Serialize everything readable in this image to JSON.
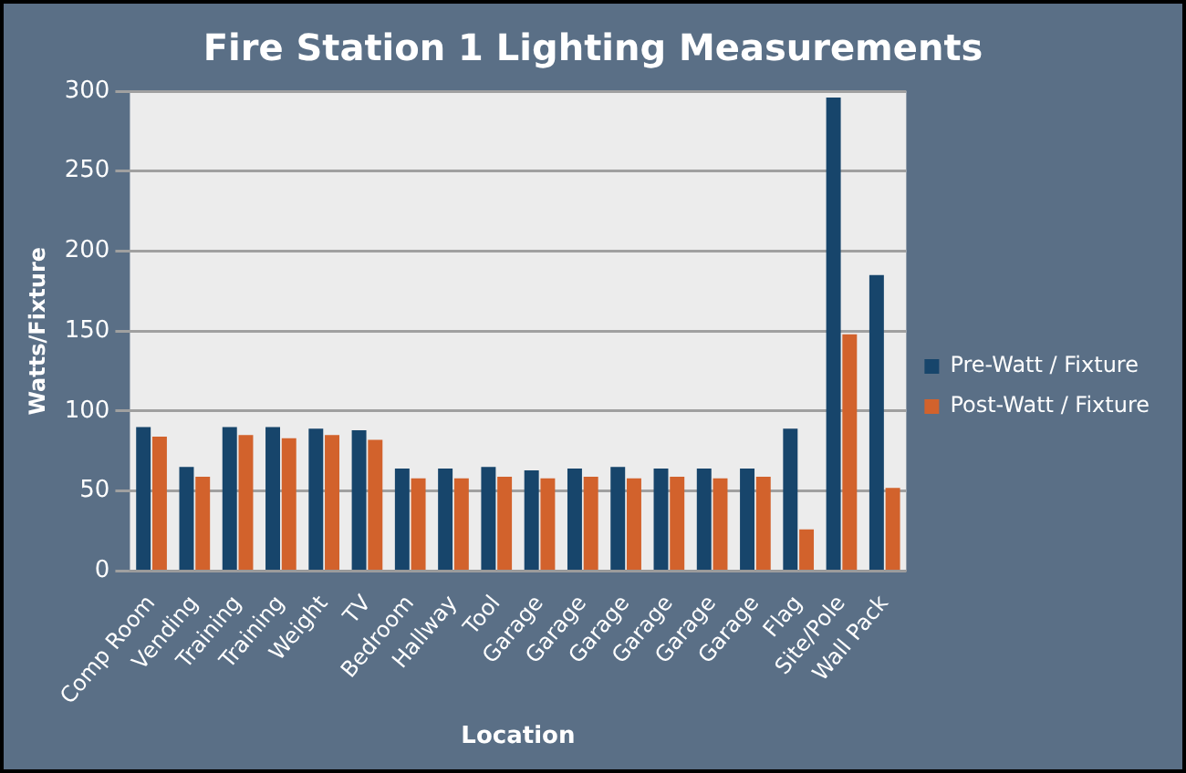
{
  "chart_data": {
    "type": "bar",
    "title": "Fire Station 1 Lighting Measurements",
    "xlabel": "Location",
    "ylabel": "Watts/Fixture",
    "categories": [
      "Comp Room",
      "Vending",
      "Training",
      "Training",
      "Weight",
      "TV",
      "Bedroom",
      "Hallway",
      "Tool",
      "Garage",
      "Garage",
      "Garage",
      "Garage",
      "Garage",
      "Garage",
      "Flag",
      "Site/Pole",
      "Wall Pack"
    ],
    "series": [
      {
        "name": "Pre-Watt / Fixture",
        "color": "#17456b",
        "values": [
          90,
          65,
          90,
          90,
          89,
          88,
          64,
          64,
          65,
          63,
          64,
          65,
          64,
          64,
          64,
          89,
          296,
          185
        ]
      },
      {
        "name": "Post-Watt / Fixture",
        "color": "#d2622c",
        "values": [
          84,
          59,
          85,
          83,
          85,
          82,
          58,
          58,
          59,
          58,
          59,
          58,
          59,
          58,
          59,
          26,
          148,
          52
        ]
      }
    ],
    "ylim": [
      0,
      300
    ],
    "yticks": [
      0,
      50,
      100,
      150,
      200,
      250,
      300
    ],
    "grid": "y",
    "legend": "right"
  }
}
